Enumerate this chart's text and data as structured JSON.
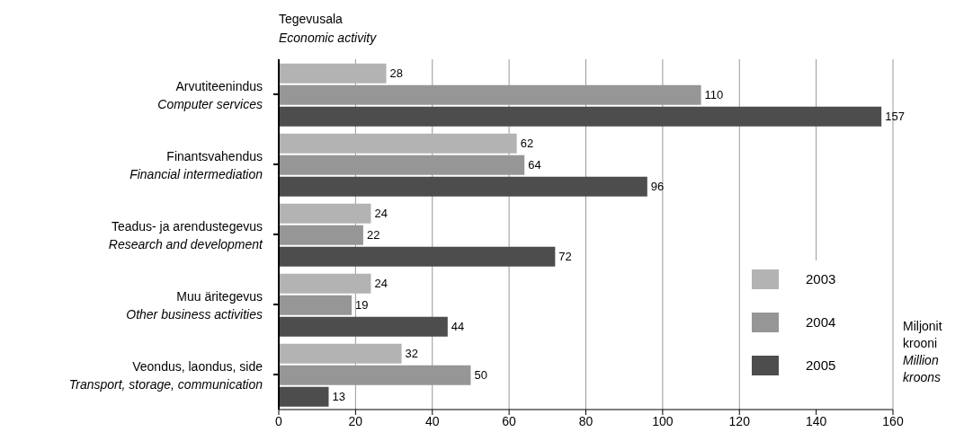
{
  "chart_data": {
    "type": "bar",
    "orientation": "horizontal",
    "title": "Tegevusala\nEconomic activity",
    "xlabel": "Miljonit krooni\nMillion kroons",
    "categories": [
      "Arvutiteenindus\nComputer services",
      "Finantsvahendus\nFinancial intermediation",
      "Teadus- ja arendustegevus\nResearch and development",
      "Muu äritegevus\nOther business activities",
      "Veondus, laondus, side\nTransport, storage, communication"
    ],
    "series": [
      {
        "name": "2003",
        "color": "#b3b3b3",
        "values": [
          28,
          62,
          24,
          24,
          32
        ]
      },
      {
        "name": "2004",
        "color": "#969696",
        "values": [
          110,
          64,
          22,
          19,
          50
        ]
      },
      {
        "name": "2005",
        "color": "#4d4d4d",
        "values": [
          157,
          96,
          72,
          44,
          13
        ]
      }
    ],
    "xlim": [
      0,
      160
    ],
    "xticks": [
      0,
      20,
      40,
      60,
      80,
      100,
      120,
      140,
      160
    ],
    "grid": "x",
    "legend": "right",
    "data_labels": true
  }
}
